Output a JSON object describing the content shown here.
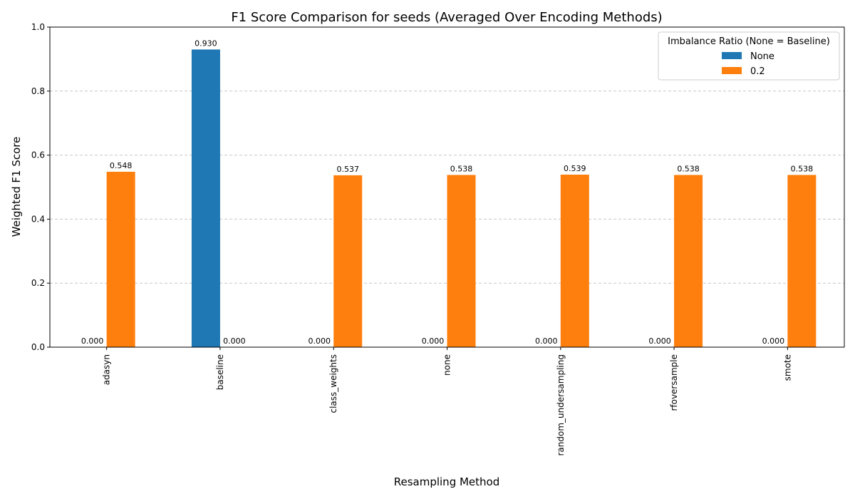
{
  "chart_data": {
    "type": "bar",
    "title": "F1 Score Comparison for seeds (Averaged Over Encoding Methods)",
    "xlabel": "Resampling Method",
    "ylabel": "Weighted F1 Score",
    "ylim": [
      0,
      1
    ],
    "yticks": [
      "0.0",
      "0.2",
      "0.4",
      "0.6",
      "0.8",
      "1.0"
    ],
    "grid": "y-dashed",
    "legend": {
      "title": "Imbalance Ratio (None = Baseline)",
      "placement": "top-right"
    },
    "categories": [
      "adasyn",
      "baseline",
      "class_weights",
      "none",
      "random_undersampling",
      "rfoversample",
      "smote"
    ],
    "series": [
      {
        "name": "None",
        "color": "#1f77b4",
        "values": [
          0.0,
          0.93,
          0.0,
          0.0,
          0.0,
          0.0,
          0.0
        ],
        "labels": [
          "0.000",
          "0.930",
          "0.000",
          "0.000",
          "0.000",
          "0.000",
          "0.000"
        ]
      },
      {
        "name": "0.2",
        "color": "#ff7f0e",
        "values": [
          0.548,
          0.0,
          0.537,
          0.538,
          0.539,
          0.538,
          0.538
        ],
        "labels": [
          "0.548",
          "0.000",
          "0.537",
          "0.538",
          "0.539",
          "0.538",
          "0.538"
        ]
      }
    ]
  }
}
